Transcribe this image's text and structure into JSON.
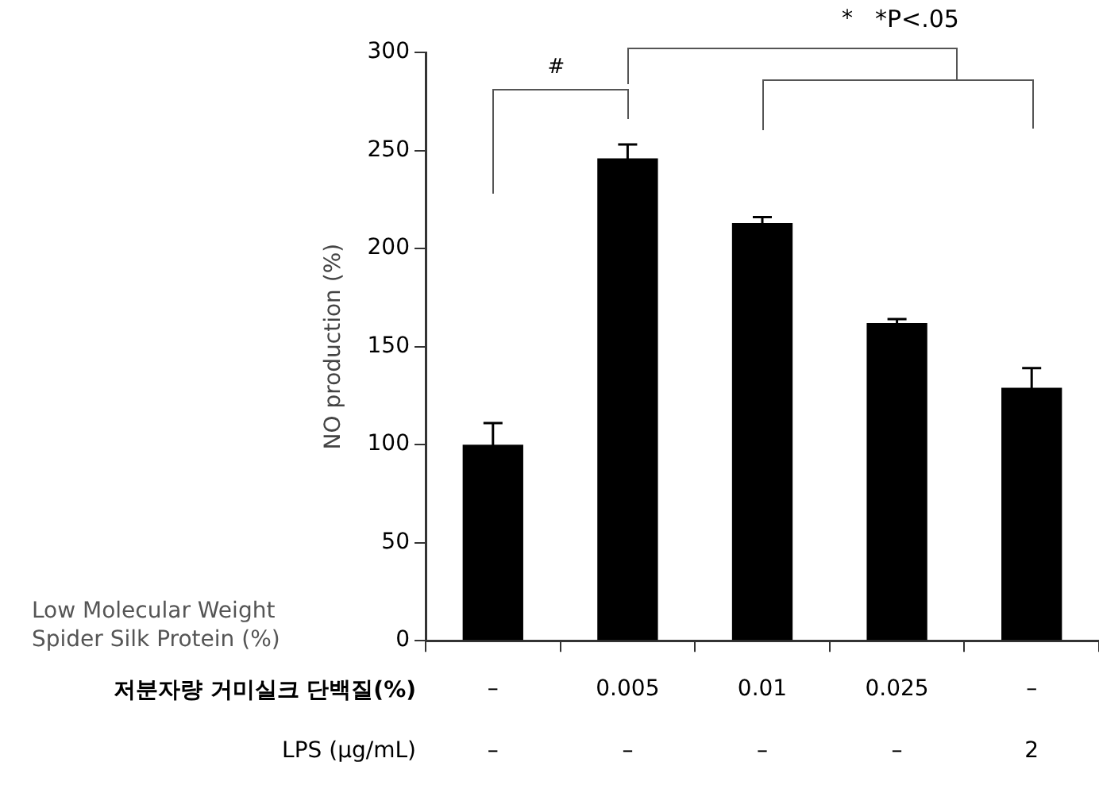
{
  "chart_data": {
    "type": "bar",
    "ylabel": "NO production (%)",
    "categories": [
      "–\n–",
      "0.005\n–",
      "0.01\n–",
      "0.025\n–",
      "–\n2"
    ],
    "values": [
      100,
      246,
      213,
      162,
      129
    ],
    "errors": [
      11,
      7,
      3,
      2,
      10
    ],
    "color": "#000000",
    "ylim": [
      0,
      300
    ],
    "yticks": [
      0,
      50,
      100,
      150,
      200,
      250,
      300
    ],
    "grid": false,
    "legend": false,
    "annotations": [
      "Low Molecular Weight Spider Silk Protein (%)",
      "저분자량 거미실크 단백질(%)",
      "LPS (μg/mL)",
      "#",
      "*",
      "*P<.05"
    ]
  }
}
